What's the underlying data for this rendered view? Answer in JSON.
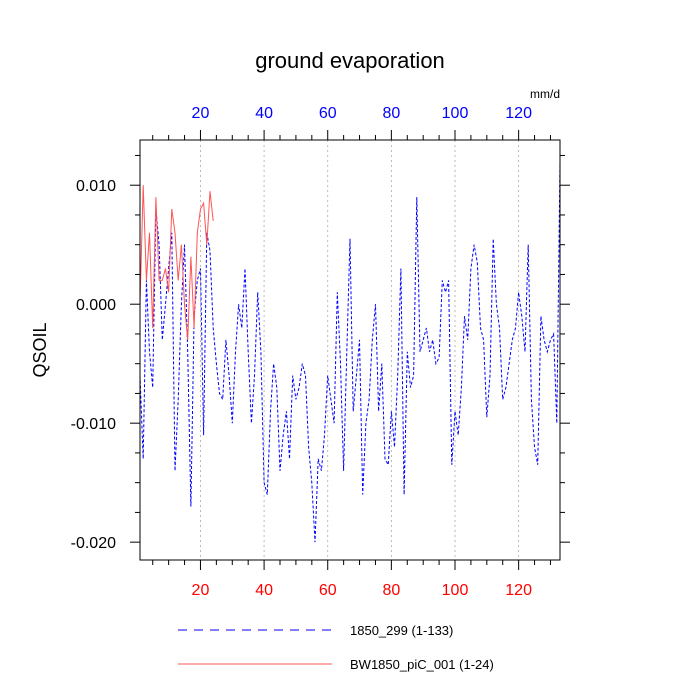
{
  "chart_data": {
    "type": "line",
    "title": "ground evaporation",
    "units": "mm/d",
    "ylabel": "QSOIL",
    "xlabel": "",
    "xlim": [
      1,
      133
    ],
    "ylim": [
      -0.0215,
      0.0138
    ],
    "x_ticks_bottom": [
      "20",
      "40",
      "60",
      "80",
      "100",
      "120"
    ],
    "x_ticks_top": [
      "20",
      "40",
      "60",
      "80",
      "100",
      "120"
    ],
    "x_tick_values": [
      20,
      40,
      60,
      80,
      100,
      120
    ],
    "y_ticks": [
      {
        "value": 0.01,
        "label": "0.010"
      },
      {
        "value": 0.0,
        "label": "0.000"
      },
      {
        "value": -0.01,
        "label": "-0.010"
      },
      {
        "value": -0.02,
        "label": "-0.020"
      }
    ],
    "colors": {
      "bottom_ticks": "#ff0000",
      "top_ticks": "#0000ff"
    },
    "series": [
      {
        "name": "1850_299 (1-133)",
        "color": "#0000ff",
        "style": "dashed",
        "x_start": 1,
        "values": [
          -0.006,
          -0.013,
          0.002,
          -0.004,
          -0.007,
          0.008,
          0.005,
          -0.003,
          0.0,
          0.003,
          0.006,
          -0.014,
          -0.008,
          0.0,
          0.005,
          -0.004,
          -0.017,
          -0.001,
          0.002,
          0.003,
          -0.011,
          0.006,
          0.0045,
          -0.002,
          -0.005,
          -0.0075,
          -0.008,
          -0.003,
          -0.006,
          -0.01,
          -0.004,
          0.0,
          -0.002,
          0.003,
          -0.004,
          -0.01,
          -0.006,
          0.001,
          -0.004,
          -0.015,
          -0.016,
          -0.009,
          -0.005,
          -0.007,
          -0.014,
          -0.011,
          -0.009,
          -0.013,
          -0.006,
          -0.008,
          -0.007,
          -0.005,
          -0.006,
          -0.012,
          -0.015,
          -0.02,
          -0.013,
          -0.014,
          -0.011,
          -0.006,
          -0.008,
          -0.01,
          0.001,
          -0.005,
          -0.014,
          -0.004,
          0.0055,
          -0.009,
          -0.006,
          -0.003,
          -0.016,
          -0.01,
          -0.008,
          -0.003,
          0.0,
          -0.009,
          -0.005,
          -0.013,
          -0.0135,
          -0.009,
          -0.012,
          -0.006,
          0.003,
          -0.016,
          -0.004,
          -0.007,
          -0.006,
          0.009,
          -0.004,
          -0.003,
          -0.002,
          -0.004,
          -0.003,
          -0.005,
          -0.0045,
          0.002,
          0.001,
          0.002,
          -0.0135,
          -0.009,
          -0.011,
          -0.007,
          -0.001,
          -0.003,
          0.003,
          0.005,
          0.0035,
          -0.002,
          -0.003,
          -0.0095,
          -0.006,
          0.0055,
          0.0,
          -0.002,
          -0.008,
          -0.007,
          -0.005,
          -0.003,
          -0.002,
          0.001,
          -0.001,
          -0.004,
          0.005,
          -0.008,
          -0.012,
          -0.0135,
          -0.001,
          -0.003,
          -0.004,
          -0.003,
          -0.0025,
          -0.01,
          0.012
        ]
      },
      {
        "name": "BW1850_piC_001 (1-24)",
        "color": "#ff5555",
        "style": "solid",
        "x_start": 1,
        "values": [
          0.0,
          0.01,
          0.002,
          0.006,
          -0.002,
          0.009,
          0.002,
          0.002,
          0.003,
          0.001,
          0.008,
          0.006,
          0.002,
          0.005,
          0.0,
          -0.003,
          0.004,
          -0.002,
          0.006,
          0.008,
          0.0085,
          0.005,
          0.0095,
          0.007
        ]
      }
    ]
  }
}
